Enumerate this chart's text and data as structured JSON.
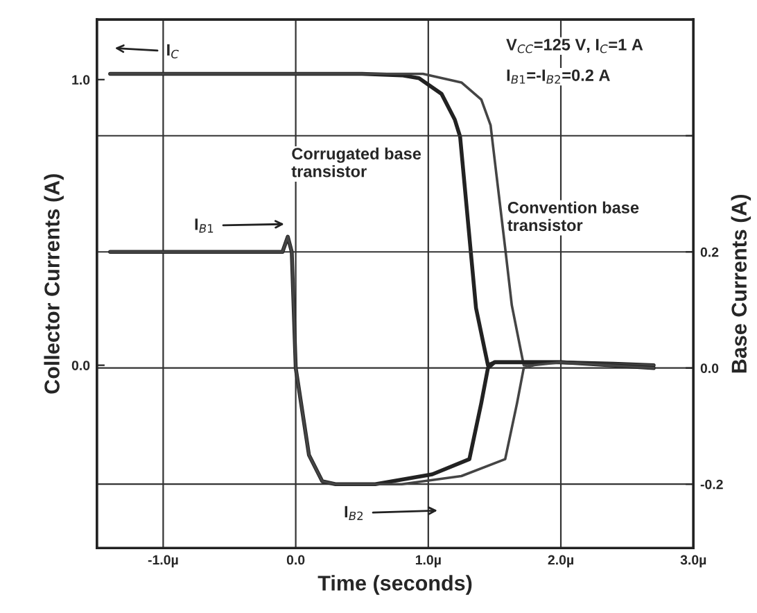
{
  "chart_data": {
    "type": "line",
    "xlabel": "Time (seconds)",
    "ylabel": "Collector Currents (A)",
    "y2label": "Base Currents (A)",
    "xlim": [
      -1.5,
      3.0
    ],
    "xticks": [
      {
        "value": -1.0,
        "label": "-1.0µ"
      },
      {
        "value": 0.0,
        "label": "0.0"
      },
      {
        "value": 1.0,
        "label": "1.0µ"
      },
      {
        "value": 2.0,
        "label": "2.0µ"
      },
      {
        "value": 3.0,
        "label": "3.0µ"
      }
    ],
    "ylim": [
      -0.64,
      1.21
    ],
    "yticks": [
      {
        "value": 0.0,
        "label": "0.0"
      },
      {
        "value": 1.0,
        "label": "1.0"
      }
    ],
    "y2lim": [
      -0.31,
      0.6
    ],
    "y2ticks": [
      {
        "value": -0.2,
        "label": "-0.2"
      },
      {
        "value": 0.0,
        "label": "0.0"
      },
      {
        "value": 0.2,
        "label": "0.2"
      },
      {
        "value": 0.4,
        "label": null
      }
    ],
    "grid": true,
    "legend": false,
    "marker": "none",
    "line_style": "solid",
    "series": [
      {
        "color": "#222222",
        "x": [
          -1.4,
          0.5,
          0.8,
          0.93,
          1.1,
          1.2,
          1.24,
          1.32,
          1.36,
          1.45,
          1.5,
          1.8,
          2.0,
          2.4,
          2.7
        ],
        "values": [
          1.02,
          1.02,
          1.015,
          1.005,
          0.95,
          0.86,
          0.8,
          0.4,
          0.2,
          0.0,
          0.01,
          0.01,
          0.01,
          0.005,
          0.0
        ]
      },
      {
        "color": "#444444",
        "x": [
          -1.4,
          0.8,
          0.96,
          1.25,
          1.4,
          1.47,
          1.48,
          1.58,
          1.63,
          1.72,
          1.8,
          2.0,
          2.7
        ],
        "values": [
          1.02,
          1.02,
          1.02,
          0.99,
          0.93,
          0.84,
          0.8,
          0.41,
          0.21,
          0.0,
          0.005,
          0.01,
          0.0
        ]
      },
      {
        "color": "#222222",
        "axis": "y2",
        "x": [
          -1.4,
          -0.1,
          -0.06,
          -0.03,
          0.0,
          0.1,
          0.2,
          0.3,
          0.6,
          1.03,
          1.31,
          1.4,
          1.45,
          1.5,
          2.0,
          2.7
        ],
        "values": [
          0.2,
          0.2,
          0.226,
          0.2,
          0.0,
          -0.15,
          -0.195,
          -0.2,
          -0.2,
          -0.183,
          -0.157,
          -0.06,
          0.0,
          0.01,
          0.01,
          0.0
        ]
      },
      {
        "color": "#444444",
        "axis": "y2",
        "x": [
          -1.4,
          -0.1,
          -0.06,
          -0.03,
          0.0,
          0.1,
          0.2,
          0.3,
          0.8,
          1.25,
          1.58,
          1.67,
          1.72,
          1.8,
          2.0,
          2.7
        ],
        "values": [
          0.2,
          0.2,
          0.226,
          0.2,
          0.0,
          -0.15,
          -0.195,
          -0.2,
          -0.2,
          -0.186,
          -0.157,
          -0.06,
          0.0,
          0.005,
          0.01,
          0.0
        ]
      }
    ],
    "annotations": [
      "I$_{C}$",
      "V$_{CC}$=125 V, I$_{C}$=1 A",
      "I$_{B1}$=-I$_{B2}$=0.2 A",
      "Corrugated base\ntransistor",
      "Convention base\ntransistor",
      "I$_{B1}$",
      "I$_{B2}$"
    ]
  }
}
